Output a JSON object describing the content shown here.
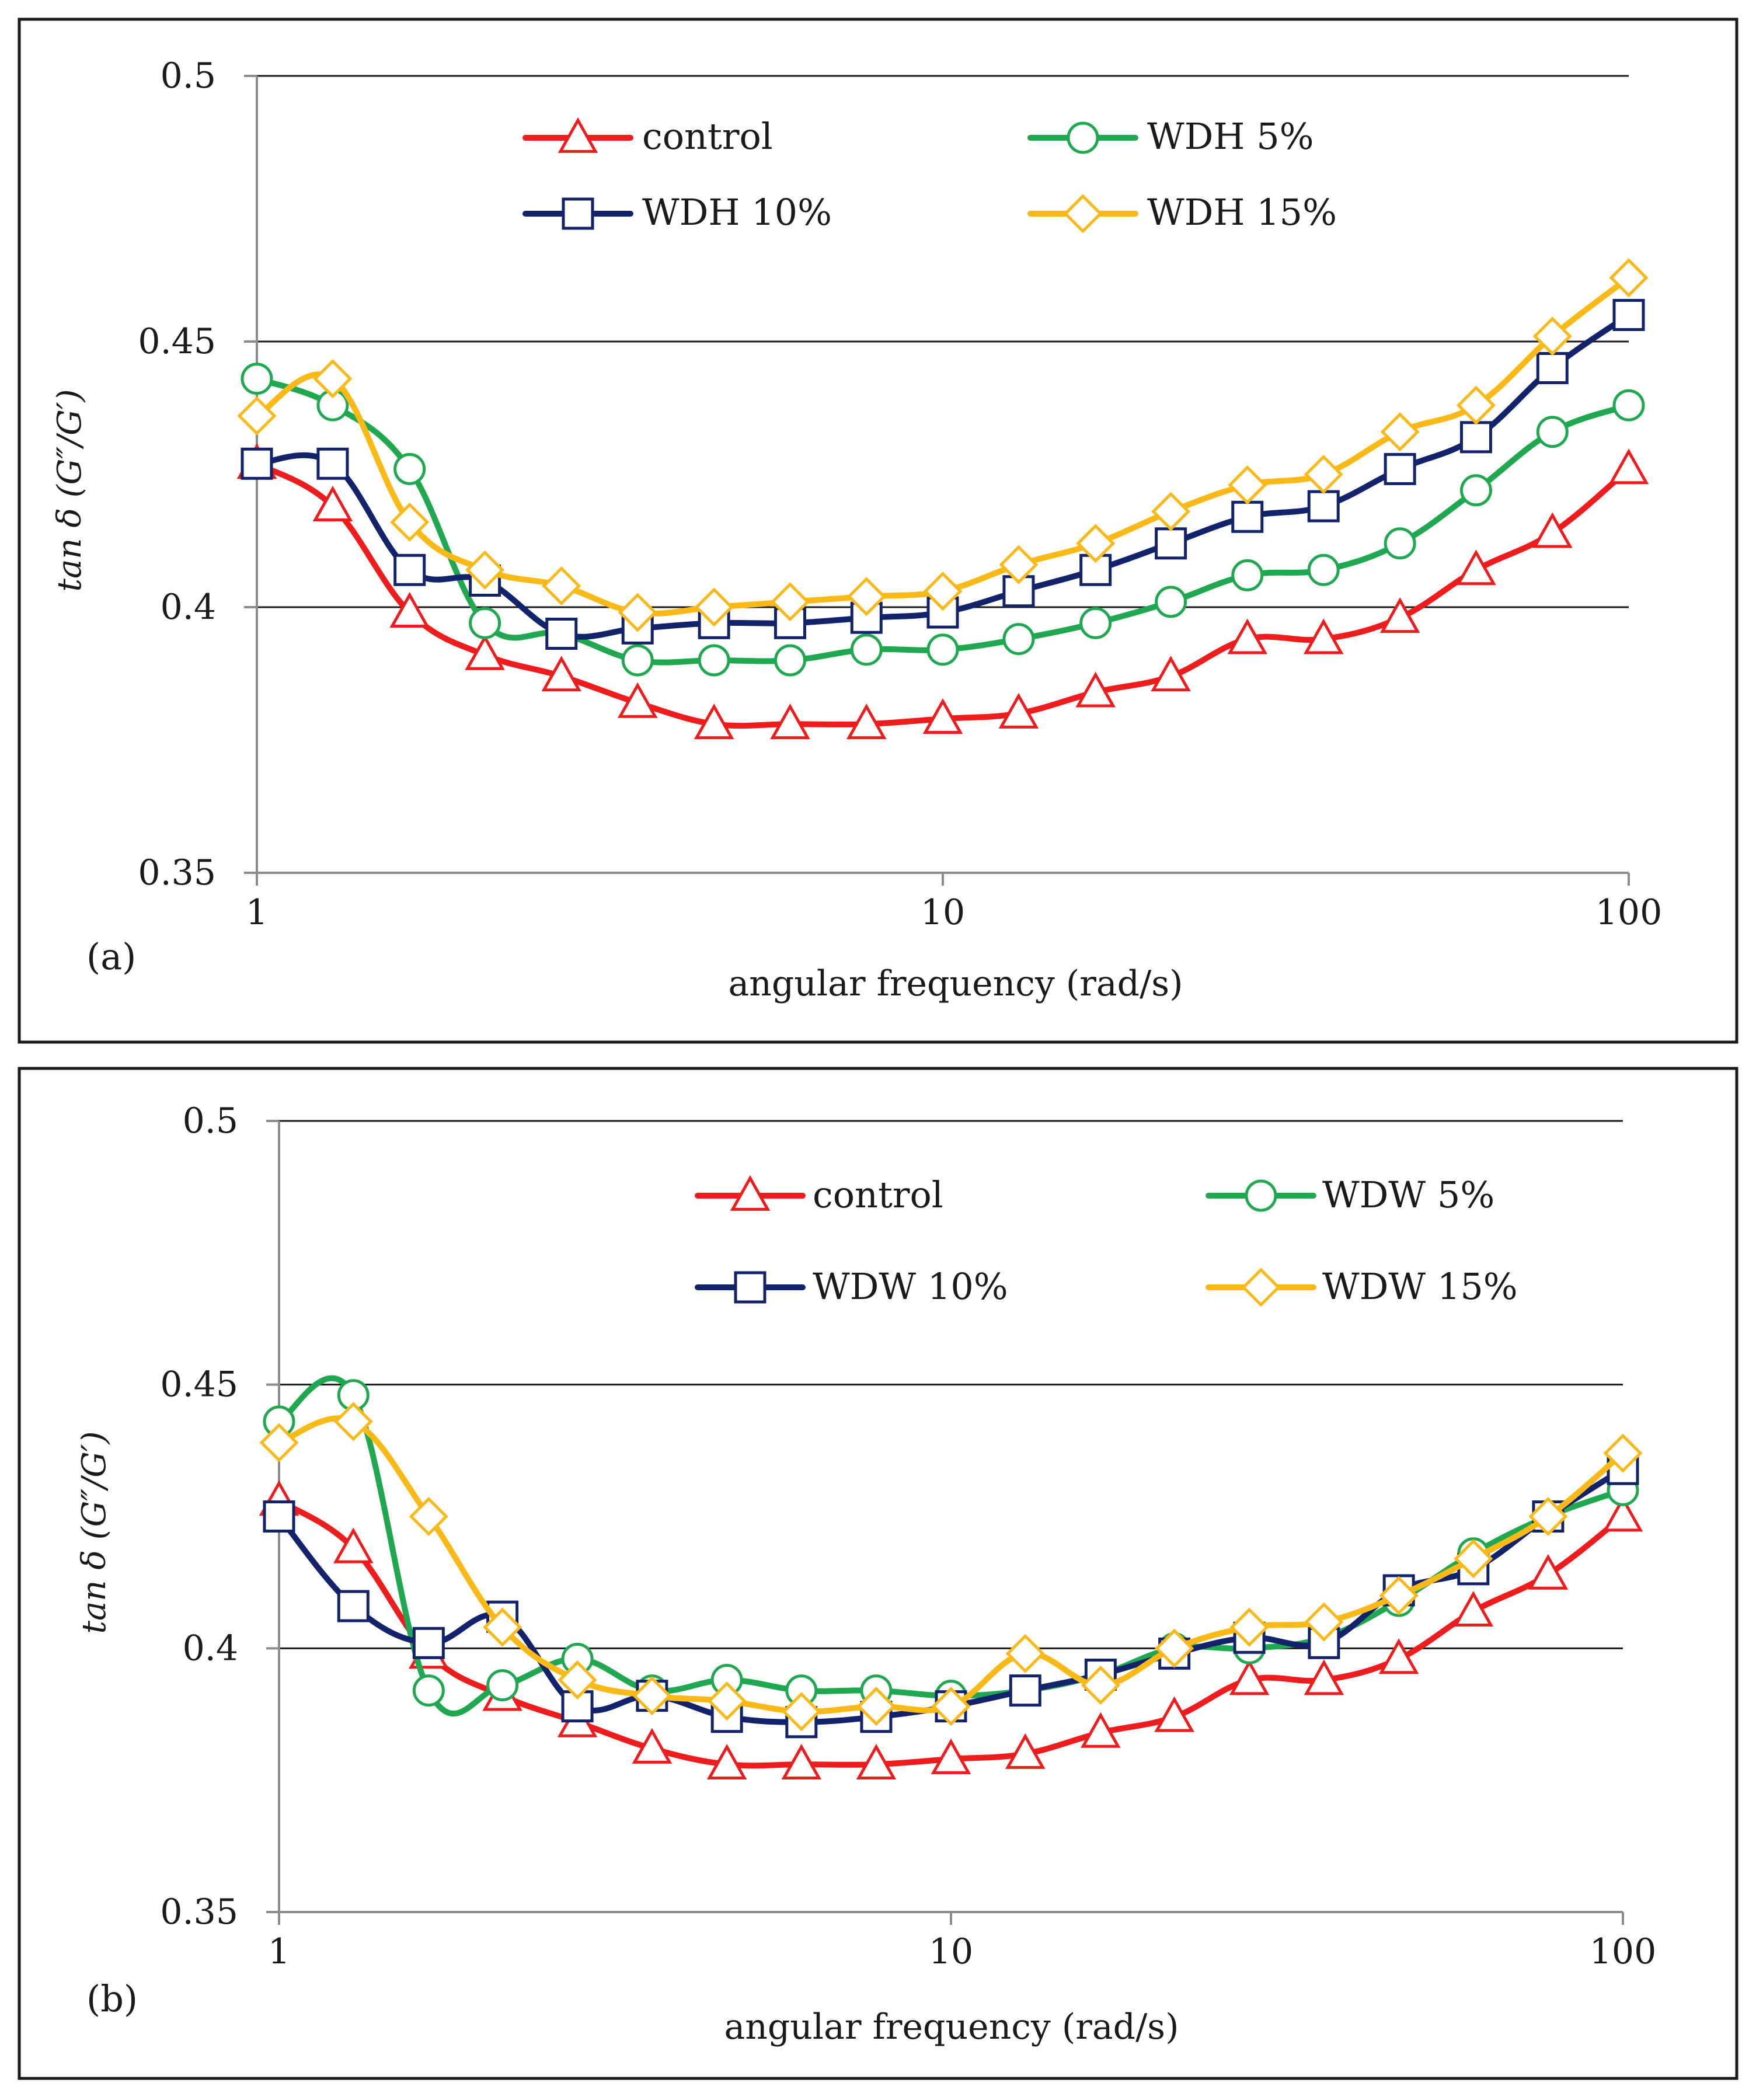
{
  "colors": {
    "control": "#ee1c1c",
    "s5": "#1fa84f",
    "s10": "#13236b",
    "s15": "#fbb918"
  },
  "chart_data": [
    {
      "type": "line",
      "panel_label": "(a)",
      "xlabel": "angular frequency (rad/s)",
      "ylabel": "tan δ (G″/G′)",
      "xscale": "log",
      "xlim": [
        1,
        100
      ],
      "ylim": [
        0.35,
        0.5
      ],
      "x_ticks": [
        "1",
        "10",
        "100"
      ],
      "y_ticks": [
        "0.35",
        "0.4",
        "0.45",
        "0.5"
      ],
      "legend": "top-center",
      "x": [
        1,
        1.29,
        1.67,
        2.15,
        2.78,
        3.59,
        4.64,
        5.99,
        7.74,
        10,
        12.9,
        16.7,
        21.5,
        27.8,
        35.9,
        46.4,
        59.9,
        77.4,
        100
      ],
      "series": [
        {
          "key": "control",
          "name": "control",
          "marker": "triangle",
          "values": [
            0.427,
            0.419,
            0.399,
            0.391,
            0.387,
            0.382,
            0.378,
            0.378,
            0.378,
            0.379,
            0.38,
            0.384,
            0.387,
            0.394,
            0.394,
            0.398,
            0.407,
            0.414,
            0.426
          ]
        },
        {
          "key": "s5",
          "name": "WDH 5%",
          "marker": "circle",
          "values": [
            0.443,
            0.438,
            0.426,
            0.397,
            0.395,
            0.39,
            0.39,
            0.39,
            0.392,
            0.392,
            0.394,
            0.397,
            0.401,
            0.406,
            0.407,
            0.412,
            0.422,
            0.433,
            0.438
          ]
        },
        {
          "key": "s10",
          "name": "WDH 10%",
          "marker": "square",
          "values": [
            0.427,
            0.427,
            0.407,
            0.405,
            0.395,
            0.396,
            0.397,
            0.397,
            0.398,
            0.399,
            0.403,
            0.407,
            0.412,
            0.417,
            0.419,
            0.426,
            0.432,
            0.445,
            0.455
          ]
        },
        {
          "key": "s15",
          "name": "WDH 15%",
          "marker": "diamond",
          "values": [
            0.436,
            0.443,
            0.416,
            0.407,
            0.404,
            0.399,
            0.4,
            0.401,
            0.402,
            0.403,
            0.408,
            0.412,
            0.418,
            0.423,
            0.425,
            0.433,
            0.438,
            0.451,
            0.462
          ]
        }
      ]
    },
    {
      "type": "line",
      "panel_label": "(b)",
      "xlabel": "angular frequency (rad/s)",
      "ylabel": "tan δ (G″/G′)",
      "xscale": "log",
      "xlim": [
        1,
        100
      ],
      "ylim": [
        0.35,
        0.5
      ],
      "x_ticks": [
        "1",
        "10",
        "100"
      ],
      "y_ticks": [
        "0.35",
        "0.4",
        "0.45",
        "0.5"
      ],
      "legend": "top-center",
      "x": [
        1,
        1.29,
        1.67,
        2.15,
        2.78,
        3.59,
        4.64,
        5.99,
        7.74,
        10,
        12.9,
        16.7,
        21.5,
        27.8,
        35.9,
        46.4,
        59.9,
        77.4,
        100
      ],
      "series": [
        {
          "key": "control",
          "name": "control",
          "marker": "triangle",
          "values": [
            0.428,
            0.419,
            0.399,
            0.391,
            0.386,
            0.381,
            0.378,
            0.378,
            0.378,
            0.379,
            0.38,
            0.384,
            0.387,
            0.394,
            0.394,
            0.398,
            0.407,
            0.414,
            0.425
          ]
        },
        {
          "key": "s5",
          "name": "WDW 5%",
          "marker": "circle",
          "values": [
            0.443,
            0.448,
            0.392,
            0.393,
            0.398,
            0.392,
            0.394,
            0.392,
            0.392,
            0.391,
            0.392,
            0.395,
            0.4,
            0.4,
            0.402,
            0.409,
            0.418,
            0.425,
            0.43
          ]
        },
        {
          "key": "s10",
          "name": "WDW 10%",
          "marker": "square",
          "values": [
            0.425,
            0.408,
            0.401,
            0.406,
            0.389,
            0.391,
            0.387,
            0.386,
            0.387,
            0.389,
            0.392,
            0.395,
            0.399,
            0.402,
            0.401,
            0.411,
            0.415,
            0.425,
            0.434
          ]
        },
        {
          "key": "s15",
          "name": "WDW 15%",
          "marker": "diamond",
          "values": [
            0.439,
            0.443,
            0.425,
            0.404,
            0.394,
            0.391,
            0.39,
            0.388,
            0.389,
            0.389,
            0.399,
            0.393,
            0.4,
            0.404,
            0.405,
            0.41,
            0.417,
            0.425,
            0.437
          ]
        }
      ]
    }
  ]
}
